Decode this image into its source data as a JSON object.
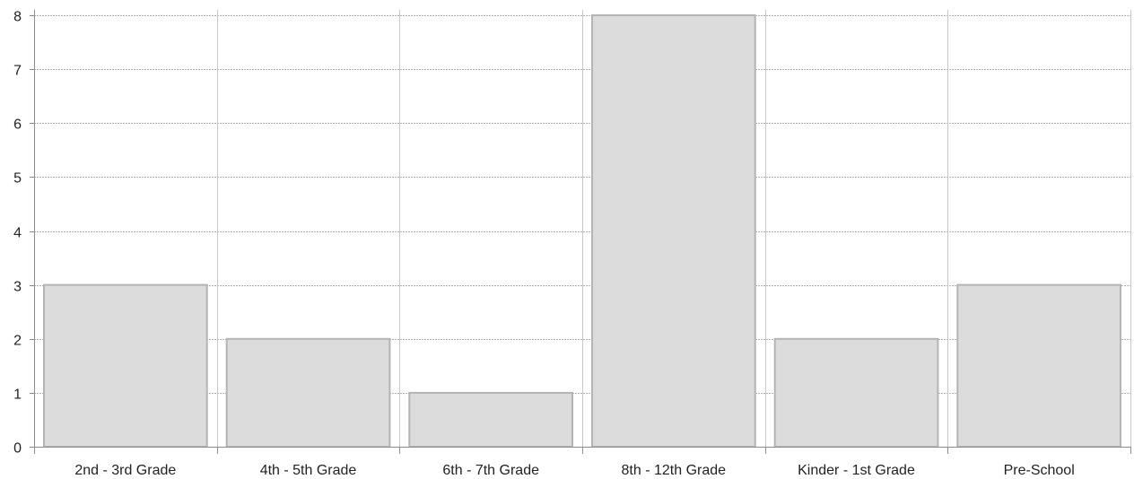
{
  "chart_data": {
    "type": "bar",
    "title": "",
    "xlabel": "",
    "ylabel": "",
    "categories": [
      "2nd - 3rd Grade",
      "4th - 5th Grade",
      "6th - 7th Grade",
      "8th - 12th Grade",
      "Kinder - 1st Grade",
      "Pre-School"
    ],
    "values": [
      3,
      2,
      1,
      8,
      2,
      3
    ],
    "ylim": [
      0,
      8
    ],
    "yticks": [
      "0",
      "1",
      "2",
      "3",
      "4",
      "5",
      "6",
      "7",
      "8"
    ],
    "grid": true,
    "legend": "none",
    "colors": {
      "bar_fill": "#dcdcdc",
      "bar_stroke": "#b4b4b4"
    }
  }
}
